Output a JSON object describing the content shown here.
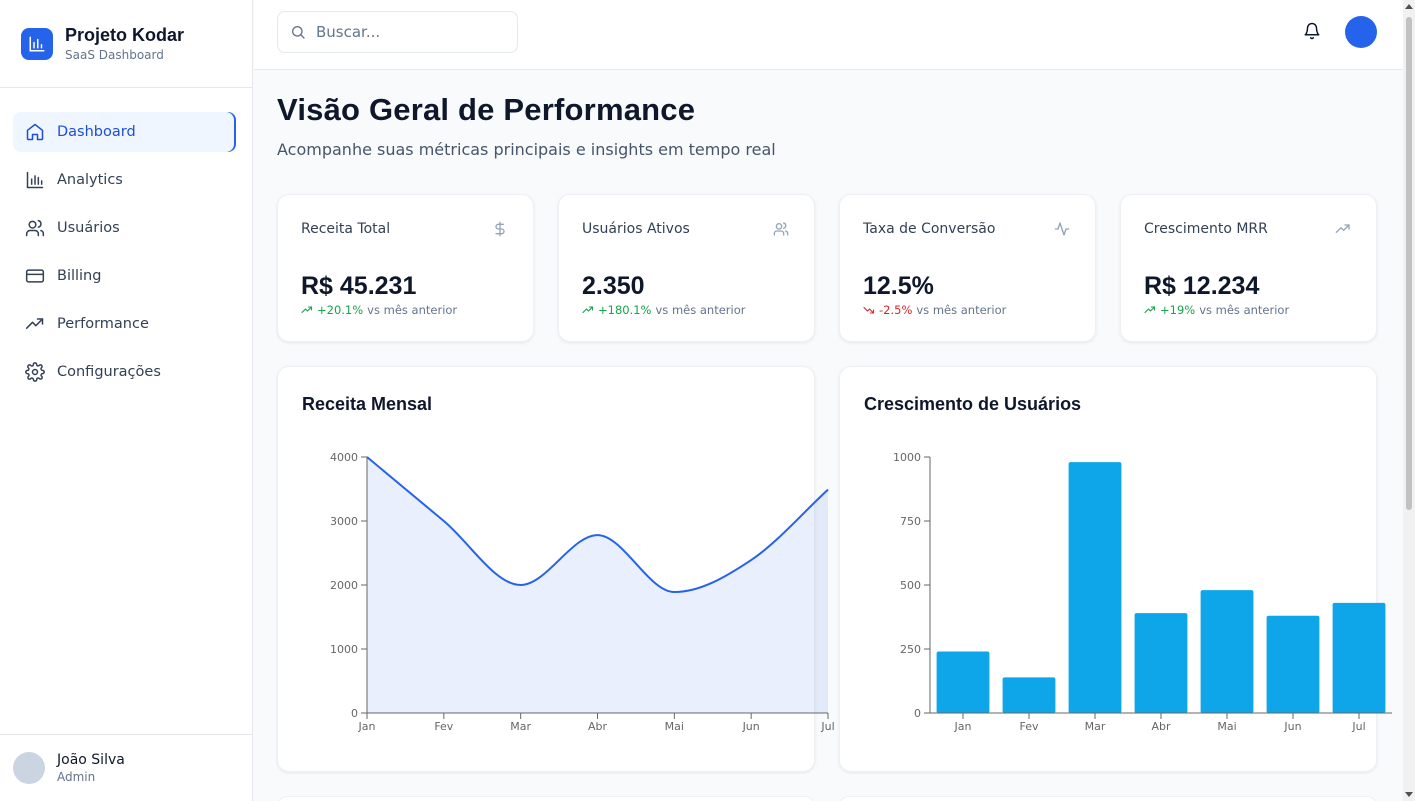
{
  "brand": {
    "name": "Projeto Kodar",
    "subtitle": "SaaS Dashboard"
  },
  "sidebar": {
    "items": [
      {
        "label": "Dashboard",
        "icon": "home-icon",
        "active": true
      },
      {
        "label": "Analytics",
        "icon": "bar-chart-icon"
      },
      {
        "label": "Usuários",
        "icon": "users-icon"
      },
      {
        "label": "Billing",
        "icon": "credit-card-icon"
      },
      {
        "label": "Performance",
        "icon": "trending-up-icon"
      },
      {
        "label": "Configurações",
        "icon": "gear-icon"
      }
    ],
    "user": {
      "name": "João Silva",
      "role": "Admin"
    }
  },
  "topbar": {
    "search_placeholder": "Buscar..."
  },
  "page": {
    "title": "Visão Geral de Performance",
    "subtitle": "Acompanhe suas métricas principais e insights em tempo real"
  },
  "kpis": [
    {
      "label": "Receita Total",
      "value": "R$ 45.231",
      "delta": "+20.1%",
      "delta_text": "vs mês anterior",
      "trend": "up",
      "icon": "dollar-icon"
    },
    {
      "label": "Usuários Ativos",
      "value": "2.350",
      "delta": "+180.1%",
      "delta_text": "vs mês anterior",
      "trend": "up",
      "icon": "users-icon"
    },
    {
      "label": "Taxa de Conversão",
      "value": "12.5%",
      "delta": "-2.5%",
      "delta_text": "vs mês anterior",
      "trend": "down",
      "icon": "activity-icon"
    },
    {
      "label": "Crescimento MRR",
      "value": "R$ 12.234",
      "delta": "+19%",
      "delta_text": "vs mês anterior",
      "trend": "up",
      "icon": "trending-up-icon"
    }
  ],
  "colors": {
    "accent": "#2563eb",
    "bar": "#0ea5e9",
    "up": "#16a34a",
    "down": "#dc2626"
  },
  "chart_data": [
    {
      "type": "area",
      "title": "Receita Mensal",
      "categories": [
        "Jan",
        "Fev",
        "Mar",
        "Abr",
        "Mai",
        "Jun",
        "Jul"
      ],
      "values": [
        4000,
        3000,
        2000,
        2780,
        1890,
        2390,
        3490
      ],
      "yticks": [
        0,
        1000,
        2000,
        3000,
        4000
      ],
      "ylim": [
        0,
        4000
      ]
    },
    {
      "type": "bar",
      "title": "Crescimento de Usuários",
      "categories": [
        "Jan",
        "Fev",
        "Mar",
        "Abr",
        "Mai",
        "Jun",
        "Jul"
      ],
      "values": [
        240,
        139,
        980,
        390,
        480,
        380,
        430
      ],
      "yticks": [
        0,
        250,
        500,
        750,
        1000
      ],
      "ylim": [
        0,
        1000
      ]
    }
  ]
}
